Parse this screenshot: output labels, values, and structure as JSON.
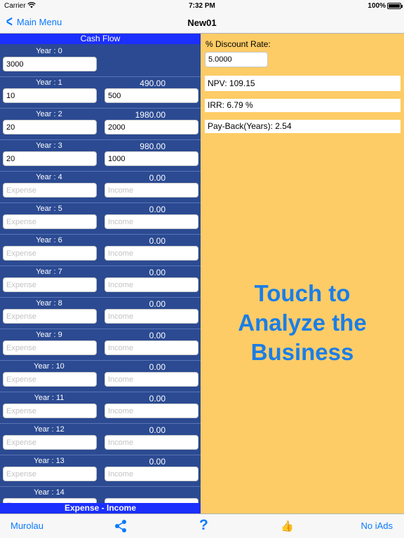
{
  "status": {
    "carrier": "Carrier",
    "time": "7:32 PM",
    "battery": "100%"
  },
  "nav": {
    "back_label": "Main Menu",
    "title": "New01"
  },
  "left": {
    "header": "Cash Flow",
    "footer": "Expense - Income",
    "expense_placeholder": "Expense",
    "income_placeholder": "Income",
    "rows": [
      {
        "label": "Year : 0",
        "net": "",
        "expense": "3000",
        "income": ""
      },
      {
        "label": "Year : 1",
        "net": "490.00",
        "expense": "10",
        "income": "500"
      },
      {
        "label": "Year : 2",
        "net": "1980.00",
        "expense": "20",
        "income": "2000"
      },
      {
        "label": "Year : 3",
        "net": "980.00",
        "expense": "20",
        "income": "1000"
      },
      {
        "label": "Year : 4",
        "net": "0.00",
        "expense": "",
        "income": ""
      },
      {
        "label": "Year : 5",
        "net": "0.00",
        "expense": "",
        "income": ""
      },
      {
        "label": "Year : 6",
        "net": "0.00",
        "expense": "",
        "income": ""
      },
      {
        "label": "Year : 7",
        "net": "0.00",
        "expense": "",
        "income": ""
      },
      {
        "label": "Year : 8",
        "net": "0.00",
        "expense": "",
        "income": ""
      },
      {
        "label": "Year : 9",
        "net": "0.00",
        "expense": "",
        "income": ""
      },
      {
        "label": "Year : 10",
        "net": "0.00",
        "expense": "",
        "income": ""
      },
      {
        "label": "Year : 11",
        "net": "0.00",
        "expense": "",
        "income": ""
      },
      {
        "label": "Year : 12",
        "net": "0.00",
        "expense": "",
        "income": ""
      },
      {
        "label": "Year : 13",
        "net": "0.00",
        "expense": "",
        "income": ""
      },
      {
        "label": "Year : 14",
        "net": "",
        "expense": "",
        "income": ""
      }
    ]
  },
  "right": {
    "discount_label": "% Discount Rate:",
    "discount_value": "5.0000",
    "npv": "NPV:  109.15",
    "irr": "IRR:  6.79 %",
    "payback": "Pay-Back(Years):  2.54",
    "touch_lines": [
      "Touch to",
      "Analyze the",
      "Business"
    ]
  },
  "toolbar": {
    "murolau": "Murolau",
    "share_icon": "share-icon",
    "help": "?",
    "thumb_icon": "thumbs-up-icon",
    "no_iads": "No iAds"
  },
  "colors": {
    "left_bg": "#2b4a92",
    "header_bar": "#1b2ffd",
    "right_bg": "#fdcc66",
    "accent": "#0a7aff",
    "touch_text": "#1a7ee8"
  }
}
